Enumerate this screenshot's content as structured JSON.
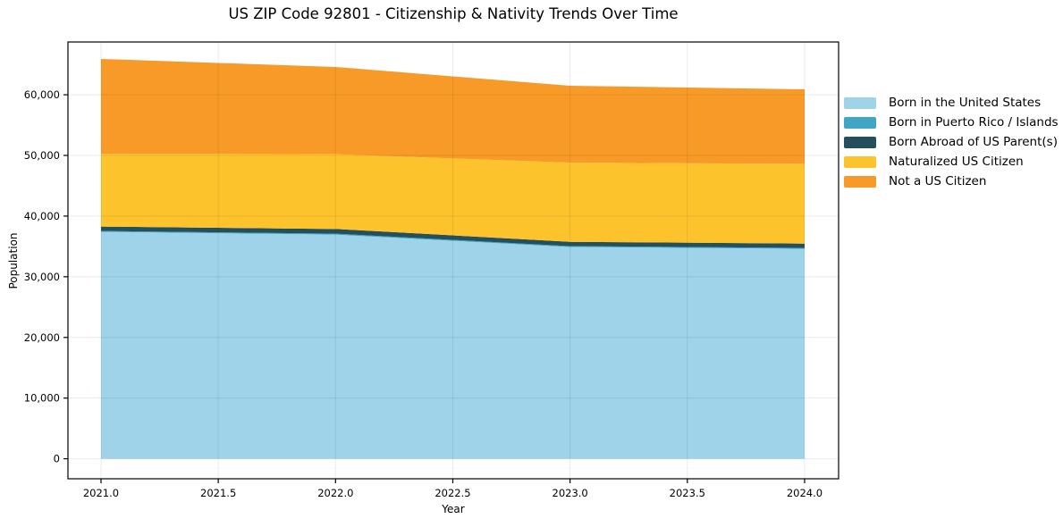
{
  "figure": {
    "background": "#ffffff"
  },
  "chart_data": {
    "type": "area",
    "stacked": true,
    "title": "US ZIP Code 92801 - Citizenship & Nativity Trends Over Time",
    "xlabel": "Year",
    "ylabel": "Population",
    "x": [
      2021,
      2022,
      2023,
      2024
    ],
    "series": [
      {
        "name": "Born in the United States",
        "color": "#9ed3ea",
        "values": [
          37400,
          36950,
          34900,
          34600
        ]
      },
      {
        "name": "Born in Puerto Rico / Islands",
        "color": "#41a6c4",
        "values": [
          150,
          150,
          150,
          150
        ]
      },
      {
        "name": "Born Abroad of US Parent(s)",
        "color": "#24505e",
        "values": [
          720,
          780,
          710,
          720
        ]
      },
      {
        "name": "Naturalized US Citizen",
        "color": "#fdc32d",
        "values": [
          12000,
          12320,
          13050,
          13150
        ]
      },
      {
        "name": "Not a US Citizen",
        "color": "#f89a28",
        "values": [
          15640,
          14380,
          12670,
          12280
        ]
      }
    ],
    "xlim": [
      2020.859,
      2024.145
    ],
    "ylim": [
      -3300,
      68700
    ],
    "xticks": [
      2021.0,
      2021.5,
      2022.0,
      2022.5,
      2023.0,
      2023.5,
      2024.0
    ],
    "xtick_labels": [
      "2021.0",
      "2021.5",
      "2022.0",
      "2022.5",
      "2023.0",
      "2023.5",
      "2024.0"
    ],
    "yticks": [
      0,
      10000,
      20000,
      30000,
      40000,
      50000,
      60000
    ],
    "ytick_labels": [
      "0",
      "10,000",
      "20,000",
      "30,000",
      "40,000",
      "50,000",
      "60,000"
    ],
    "grid": true,
    "legend_position": "right-outside",
    "grid_color": "rgba(0,0,0,0.08)",
    "spine_color": "#000000",
    "text_color": "#000000"
  }
}
